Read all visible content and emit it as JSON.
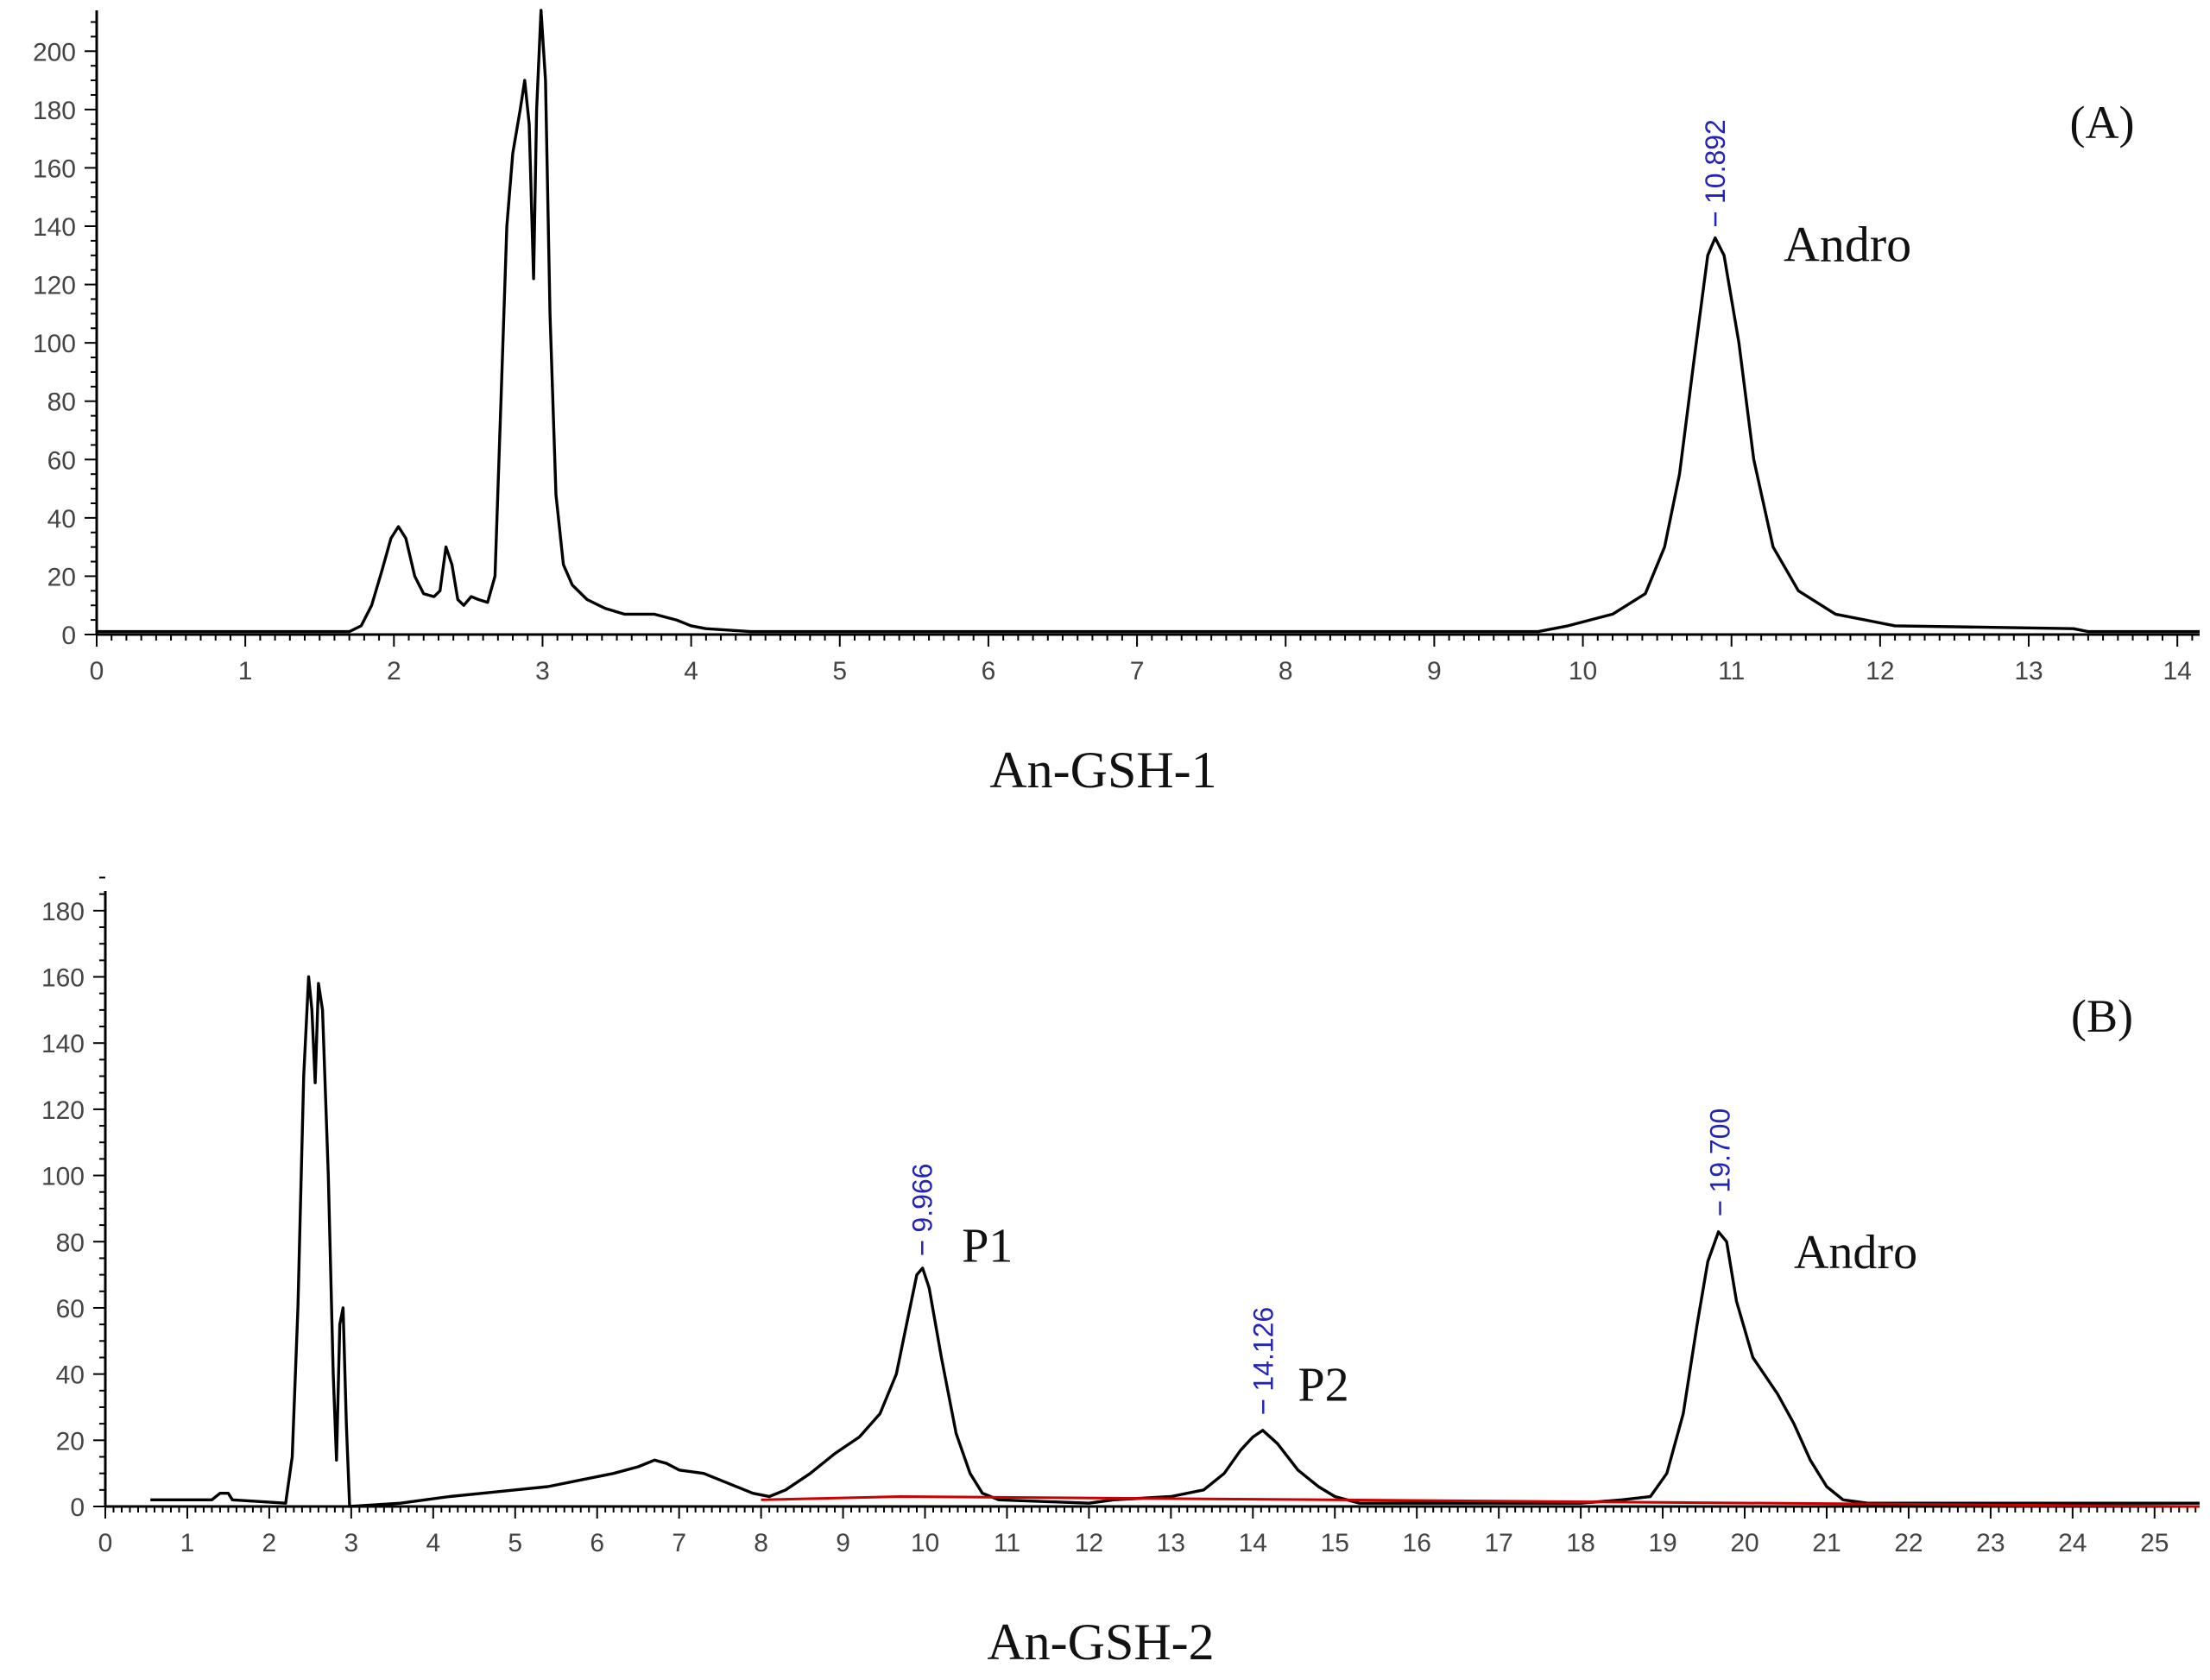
{
  "chart_data": [
    {
      "type": "line",
      "panel_label": "(A)",
      "xlabel": "An-GSH-1",
      "ylabel": "",
      "xlim": [
        0,
        14.15
      ],
      "ylim": [
        0,
        214
      ],
      "x_ticks": [
        "0",
        "1",
        "2",
        "3",
        "4",
        "5",
        "6",
        "7",
        "8",
        "9",
        "10",
        "11",
        "12",
        "13",
        "14"
      ],
      "y_ticks": [
        "0",
        "20",
        "40",
        "60",
        "80",
        "100",
        "120",
        "140",
        "160",
        "180",
        "200"
      ],
      "grid": false,
      "peak_labels": [
        {
          "x": 10.892,
          "y": 140,
          "text": "10.892"
        }
      ],
      "annotations": [
        {
          "x": 11.35,
          "y": 128,
          "text": "Andro"
        }
      ],
      "series": [
        {
          "color": "#000000",
          "points": [
            [
              0.0,
              1
            ],
            [
              1.7,
              1
            ],
            [
              1.78,
              3
            ],
            [
              1.85,
              10
            ],
            [
              1.92,
              22
            ],
            [
              1.98,
              33
            ],
            [
              2.03,
              37
            ],
            [
              2.08,
              33
            ],
            [
              2.14,
              20
            ],
            [
              2.2,
              14
            ],
            [
              2.27,
              13
            ],
            [
              2.31,
              15
            ],
            [
              2.35,
              30
            ],
            [
              2.39,
              24
            ],
            [
              2.43,
              12
            ],
            [
              2.47,
              10
            ],
            [
              2.52,
              13
            ],
            [
              2.57,
              12
            ],
            [
              2.63,
              11
            ],
            [
              2.68,
              20
            ],
            [
              2.72,
              80
            ],
            [
              2.76,
              140
            ],
            [
              2.8,
              165
            ],
            [
              2.85,
              180
            ],
            [
              2.88,
              190
            ],
            [
              2.91,
              175
            ],
            [
              2.94,
              122
            ],
            [
              2.96,
              180
            ],
            [
              2.99,
              214
            ],
            [
              3.02,
              190
            ],
            [
              3.05,
              110
            ],
            [
              3.09,
              48
            ],
            [
              3.14,
              24
            ],
            [
              3.2,
              17
            ],
            [
              3.3,
              12
            ],
            [
              3.42,
              9
            ],
            [
              3.55,
              7
            ],
            [
              3.75,
              7
            ],
            [
              3.9,
              5
            ],
            [
              4.0,
              3
            ],
            [
              4.1,
              2
            ],
            [
              4.4,
              1
            ],
            [
              9.7,
              1
            ],
            [
              9.9,
              3
            ],
            [
              10.2,
              7
            ],
            [
              10.42,
              14
            ],
            [
              10.55,
              30
            ],
            [
              10.65,
              55
            ],
            [
              10.75,
              95
            ],
            [
              10.84,
              130
            ],
            [
              10.89,
              136
            ],
            [
              10.95,
              130
            ],
            [
              11.05,
              100
            ],
            [
              11.15,
              60
            ],
            [
              11.28,
              30
            ],
            [
              11.45,
              15
            ],
            [
              11.7,
              7
            ],
            [
              12.1,
              3
            ],
            [
              13.3,
              2
            ],
            [
              13.4,
              1
            ],
            [
              14.15,
              1
            ]
          ]
        }
      ]
    },
    {
      "type": "line",
      "panel_label": "(B)",
      "xlabel": "An-GSH-2",
      "ylabel": "",
      "xlim": [
        0,
        25.55
      ],
      "ylim": [
        0,
        193
      ],
      "x_ticks": [
        "0",
        "1",
        "2",
        "3",
        "4",
        "5",
        "6",
        "7",
        "8",
        "9",
        "10",
        "11",
        "12",
        "13",
        "14",
        "15",
        "16",
        "17",
        "18",
        "19",
        "20",
        "21",
        "22",
        "23",
        "24",
        "25"
      ],
      "y_ticks": [
        "0",
        "20",
        "40",
        "60",
        "80",
        "100",
        "120",
        "140",
        "160",
        "180"
      ],
      "grid": false,
      "peak_labels": [
        {
          "x": 9.966,
          "y": 76,
          "text": "9.966"
        },
        {
          "x": 14.126,
          "y": 28,
          "text": "14.126"
        },
        {
          "x": 19.7,
          "y": 88,
          "text": "19.700"
        }
      ],
      "annotations": [
        {
          "x": 10.45,
          "y": 74,
          "text": "P1"
        },
        {
          "x": 14.55,
          "y": 32,
          "text": "P2"
        },
        {
          "x": 20.6,
          "y": 72,
          "text": "Andro"
        }
      ],
      "series": [
        {
          "color": "#000000",
          "points": [
            [
              0.55,
              2
            ],
            [
              1.3,
              2
            ],
            [
              1.4,
              4
            ],
            [
              1.5,
              4
            ],
            [
              1.55,
              2
            ],
            [
              2.2,
              1
            ],
            [
              2.28,
              15
            ],
            [
              2.35,
              60
            ],
            [
              2.42,
              130
            ],
            [
              2.48,
              160
            ],
            [
              2.52,
              150
            ],
            [
              2.56,
              128
            ],
            [
              2.6,
              158
            ],
            [
              2.65,
              150
            ],
            [
              2.72,
              100
            ],
            [
              2.78,
              40
            ],
            [
              2.82,
              14
            ],
            [
              2.86,
              55
            ],
            [
              2.9,
              60
            ],
            [
              2.94,
              25
            ],
            [
              2.98,
              0
            ],
            [
              3.6,
              1
            ],
            [
              3.9,
              2
            ],
            [
              4.2,
              3
            ],
            [
              4.6,
              4
            ],
            [
              5.0,
              5
            ],
            [
              5.4,
              6
            ],
            [
              5.8,
              8
            ],
            [
              6.2,
              10
            ],
            [
              6.5,
              12
            ],
            [
              6.7,
              14
            ],
            [
              6.85,
              13
            ],
            [
              7.0,
              11
            ],
            [
              7.3,
              10
            ],
            [
              7.6,
              7
            ],
            [
              7.9,
              4
            ],
            [
              8.1,
              3
            ],
            [
              8.3,
              5
            ],
            [
              8.6,
              10
            ],
            [
              8.9,
              16
            ],
            [
              9.2,
              21
            ],
            [
              9.45,
              28
            ],
            [
              9.65,
              40
            ],
            [
              9.8,
              58
            ],
            [
              9.9,
              70
            ],
            [
              9.97,
              72
            ],
            [
              10.05,
              66
            ],
            [
              10.2,
              45
            ],
            [
              10.38,
              22
            ],
            [
              10.55,
              10
            ],
            [
              10.7,
              4
            ],
            [
              10.9,
              2
            ],
            [
              12.0,
              1
            ],
            [
              12.3,
              2
            ],
            [
              13.0,
              3
            ],
            [
              13.4,
              5
            ],
            [
              13.65,
              10
            ],
            [
              13.85,
              17
            ],
            [
              14.0,
              21
            ],
            [
              14.12,
              23
            ],
            [
              14.3,
              19
            ],
            [
              14.55,
              11
            ],
            [
              14.8,
              6
            ],
            [
              15.0,
              3
            ],
            [
              15.3,
              1
            ],
            [
              18.0,
              1
            ],
            [
              18.5,
              2
            ],
            [
              18.85,
              3
            ],
            [
              19.05,
              10
            ],
            [
              19.25,
              28
            ],
            [
              19.42,
              55
            ],
            [
              19.55,
              74
            ],
            [
              19.68,
              83
            ],
            [
              19.78,
              80
            ],
            [
              19.9,
              62
            ],
            [
              20.1,
              45
            ],
            [
              20.4,
              34
            ],
            [
              20.6,
              25
            ],
            [
              20.8,
              14
            ],
            [
              21.0,
              6
            ],
            [
              21.2,
              2
            ],
            [
              21.5,
              1
            ],
            [
              25.55,
              1
            ]
          ]
        },
        {
          "color": "#cc0000",
          "points": [
            [
              8.0,
              2
            ],
            [
              9.7,
              3
            ],
            [
              25.55,
              0
            ]
          ]
        }
      ]
    }
  ]
}
